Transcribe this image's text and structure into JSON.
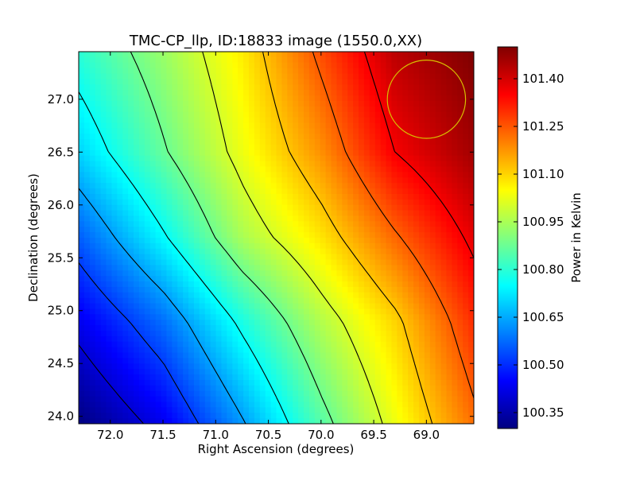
{
  "chart_data": {
    "type": "heatmap",
    "title": "TMC-CP_llp, ID:18833 image (1550.0,XX)",
    "xlabel": "Right Ascension (degrees)",
    "ylabel": "Declination (degrees)",
    "colorbar_label": "Power in Kelvin",
    "colormap": "jet",
    "xlim": [
      72.3,
      68.55
    ],
    "ylim": [
      23.93,
      27.45
    ],
    "x_inverted": true,
    "x_ticks": [
      72.0,
      71.5,
      71.0,
      70.5,
      70.0,
      69.5,
      69.0
    ],
    "x_tick_labels": [
      "72.0",
      "71.5",
      "71.0",
      "70.5",
      "70.0",
      "69.5",
      "69.0"
    ],
    "y_ticks": [
      24.0,
      24.5,
      25.0,
      25.5,
      26.0,
      26.5,
      27.0
    ],
    "y_tick_labels": [
      "24.0",
      "24.5",
      "25.0",
      "25.5",
      "26.0",
      "26.5",
      "27.0"
    ],
    "color_range": [
      100.3,
      101.5
    ],
    "colorbar_ticks": [
      100.35,
      100.5,
      100.65,
      100.8,
      100.95,
      101.1,
      101.25,
      101.4
    ],
    "colorbar_tick_labels": [
      "100.35",
      "100.50",
      "100.65",
      "100.80",
      "100.95",
      "101.10",
      "101.25",
      "101.40"
    ],
    "x_samples": [
      72.3,
      71.5,
      70.75,
      70.0,
      69.3,
      68.55
    ],
    "y_samples": [
      27.45,
      26.5,
      25.7,
      24.9,
      23.93
    ],
    "values": [
      [
        100.8,
        100.93,
        101.07,
        101.26,
        101.43,
        101.5
      ],
      [
        100.7,
        100.87,
        101.03,
        101.18,
        101.36,
        101.46
      ],
      [
        100.56,
        100.75,
        100.95,
        101.08,
        101.23,
        101.38
      ],
      [
        100.43,
        100.58,
        100.78,
        100.96,
        101.1,
        101.3
      ],
      [
        100.3,
        100.43,
        100.63,
        100.85,
        101.03,
        101.22
      ]
    ],
    "beam": {
      "ra": 69.0,
      "dec": 27.0,
      "radius_deg": 0.37,
      "color": "#d8c000"
    }
  }
}
